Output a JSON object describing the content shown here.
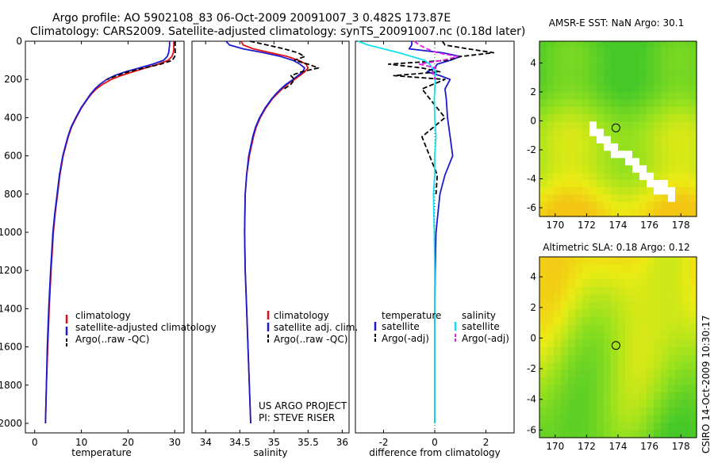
{
  "title": {
    "line1": "Argo profile: AO 5902108_83 06-Oct-2009 20091007_3 0.482S 173.87E",
    "line2": "Climatology: CARS2009. Satellite-adjusted climatology: synTS_20091007.nc (0.18d later)"
  },
  "colors": {
    "climatology": "#e01010",
    "satellite": "#1a1ad0",
    "argo": "#000000",
    "sat_diff_sal": "#10e0f0",
    "argo_diff_sal": "#e020e0"
  },
  "chart_data": [
    {
      "type": "line",
      "id": "temperature",
      "xlabel": "temperature",
      "xlim": [
        -2,
        32
      ],
      "ylim": [
        0,
        2050
      ],
      "xticks": [
        "0",
        "10",
        "20",
        "30"
      ],
      "yticks": [
        "0",
        "200",
        "400",
        "600",
        "800",
        "1000",
        "1200",
        "1400",
        "1600",
        "1800",
        "2000"
      ],
      "depth": [
        0,
        20,
        40,
        60,
        80,
        100,
        120,
        140,
        160,
        180,
        200,
        225,
        250,
        275,
        300,
        350,
        400,
        450,
        500,
        600,
        700,
        800,
        900,
        1000,
        1200,
        1400,
        1600,
        1800,
        2000
      ],
      "series": [
        {
          "name": "climatology",
          "values": [
            29.8,
            29.8,
            29.8,
            29.7,
            29.4,
            28.6,
            26.5,
            23.8,
            21.0,
            18.5,
            16.4,
            14.6,
            13.2,
            12.2,
            11.4,
            10.0,
            8.9,
            7.9,
            7.2,
            6.1,
            5.4,
            4.9,
            4.4,
            4.0,
            3.5,
            3.1,
            2.8,
            2.5,
            2.3
          ]
        },
        {
          "name": "satellite-adjusted climatology",
          "values": [
            28.9,
            28.9,
            28.8,
            28.7,
            28.4,
            27.6,
            25.3,
            22.4,
            19.4,
            17.1,
            15.4,
            14.0,
            12.9,
            12.0,
            11.3,
            9.9,
            8.8,
            7.8,
            7.1,
            6.0,
            5.3,
            4.8,
            4.3,
            3.9,
            3.4,
            3.0,
            2.7,
            2.5,
            2.3
          ]
        },
        {
          "name": "Argo(..raw -QC)",
          "values": [
            30.1,
            30.1,
            30.1,
            30.1,
            30.0,
            29.5,
            27.0,
            23.5,
            20.0,
            17.6,
            15.5,
            null,
            null,
            null,
            null,
            null,
            null,
            null,
            null,
            null,
            null,
            null,
            null,
            null,
            null,
            null,
            null,
            null,
            null
          ]
        }
      ],
      "legend": [
        "climatology",
        "satellite-adjusted climatology",
        "Argo(..raw -QC)"
      ]
    },
    {
      "type": "line",
      "id": "salinity",
      "xlabel": "salinity",
      "xlim": [
        33.8,
        36.1
      ],
      "ylim": [
        0,
        2050
      ],
      "xticks": [
        "34",
        "34.5",
        "35",
        "35.5",
        "36"
      ],
      "depth": [
        0,
        20,
        40,
        60,
        80,
        100,
        120,
        140,
        160,
        180,
        200,
        225,
        250,
        275,
        300,
        350,
        400,
        450,
        500,
        600,
        700,
        800,
        1000,
        1200,
        1400,
        1600,
        1800,
        2000
      ],
      "series": [
        {
          "name": "climatology",
          "values": [
            34.52,
            34.55,
            34.7,
            34.95,
            35.2,
            35.36,
            35.47,
            35.5,
            35.45,
            35.38,
            35.3,
            35.2,
            35.12,
            35.05,
            34.98,
            34.88,
            34.8,
            34.74,
            34.7,
            34.64,
            34.6,
            34.58,
            34.57,
            34.58,
            34.6,
            34.62,
            34.64,
            34.66
          ]
        },
        {
          "name": "satellite adj. clim.",
          "values": [
            34.3,
            34.35,
            34.55,
            34.85,
            35.1,
            35.28,
            35.38,
            35.45,
            35.42,
            35.35,
            35.28,
            35.18,
            35.1,
            35.03,
            34.97,
            34.87,
            34.79,
            34.73,
            34.69,
            34.63,
            34.6,
            34.58,
            34.57,
            34.58,
            34.6,
            34.62,
            34.64,
            34.66
          ]
        },
        {
          "name": "Argo(..raw -QC)",
          "values": [
            34.65,
            34.9,
            35.15,
            35.35,
            35.45,
            35.3,
            35.5,
            35.65,
            35.4,
            35.25,
            35.3,
            35.25,
            35.15,
            null,
            null,
            null,
            null,
            null,
            null,
            null,
            null,
            null,
            null,
            null,
            null,
            null,
            null,
            null
          ]
        }
      ],
      "legend": [
        "climatology",
        "satellite adj. clim.",
        "Argo(..raw -QC)"
      ],
      "annotation": {
        "line1": "US ARGO PROJECT",
        "line2": "PI: STEVE RISER"
      }
    },
    {
      "type": "line",
      "id": "difference",
      "xlabel": "difference from climatology",
      "xlim": [
        -3.1,
        3.1
      ],
      "ylim": [
        0,
        2050
      ],
      "xticks": [
        "-2",
        "0",
        "2"
      ],
      "depth": [
        0,
        20,
        40,
        60,
        80,
        100,
        120,
        140,
        160,
        180,
        200,
        250,
        300,
        400,
        500,
        600,
        700,
        800,
        1000,
        1200,
        1400,
        1600,
        1800,
        2000
      ],
      "series": [
        {
          "name": "temperature satellite",
          "values": [
            -0.9,
            -0.9,
            -1.0,
            0.3,
            1.0,
            0.6,
            0.1,
            0.0,
            -0.3,
            0.2,
            0.6,
            0.4,
            0.45,
            0.5,
            0.6,
            0.7,
            0.4,
            0.2,
            0.05,
            0.02,
            0.0,
            0.0,
            0.0,
            0.0
          ]
        },
        {
          "name": "temperature Argo(-adj)",
          "values": [
            0.3,
            0.4,
            1.3,
            2.3,
            1.0,
            0.5,
            -1.8,
            -0.5,
            0.2,
            -1.6,
            0.4,
            -0.5,
            -0.2,
            0.4,
            -0.5,
            -0.2,
            0.1,
            0.05,
            null,
            null,
            null,
            null,
            null,
            null
          ]
        },
        {
          "name": "salinity satellite",
          "values": [
            -3.0,
            -2.6,
            -2.0,
            -1.4,
            -0.9,
            -0.4,
            -0.2,
            -0.1,
            0.05,
            0.0,
            0.02,
            0.0,
            -0.02,
            0.0,
            0.05,
            0.0,
            0.0,
            -0.05,
            -0.02,
            0.0,
            0.0,
            0.0,
            0.0,
            0.0
          ]
        },
        {
          "name": "salinity Argo(-adj)",
          "values": [
            -0.8,
            -0.6,
            -0.3,
            0.1,
            0.9,
            0.3,
            -0.6,
            0.05,
            -0.1,
            0.0,
            0.0,
            null,
            null,
            null,
            null,
            null,
            null,
            null,
            null,
            null,
            null,
            null,
            null,
            null
          ]
        }
      ],
      "legend_headers": {
        "temperature": "temperature",
        "salinity": "salinity"
      },
      "legend": [
        "satellite",
        "Argo(-adj)",
        "satellite",
        "Argo(-adj)"
      ]
    },
    {
      "type": "heatmap",
      "id": "sst_map",
      "title": "AMSR-E SST: NaN Argo: 30.1",
      "xlim": [
        169,
        179
      ],
      "ylim": [
        -6.6,
        5.5
      ],
      "xticks": [
        "170",
        "172",
        "174",
        "176",
        "178"
      ],
      "yticks": [
        "4",
        "2",
        "0",
        "-2",
        "-4",
        "-6"
      ],
      "argo_position": [
        173.87,
        -0.482
      ]
    },
    {
      "type": "heatmap",
      "id": "sla_map",
      "title": "Altimetric SLA: 0.18 Argo: 0.12",
      "xlim": [
        169,
        179
      ],
      "ylim": [
        -6.5,
        5.3
      ],
      "xticks": [
        "170",
        "172",
        "174",
        "176",
        "178"
      ],
      "yticks": [
        "4",
        "2",
        "0",
        "-2",
        "-4",
        "-6"
      ],
      "argo_position": [
        173.87,
        -0.482
      ]
    }
  ],
  "footer": {
    "stamp": "CSIRO 14-Oct-2009 10:30:17"
  }
}
